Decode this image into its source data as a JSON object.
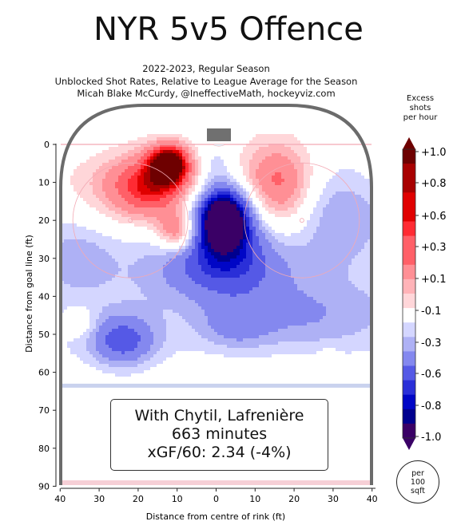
{
  "header": {
    "title": "NYR 5v5 Offence",
    "season": "2022-2023, Regular Season",
    "description": "Unblocked Shot Rates, Relative to League Average for the Season",
    "credit": "Micah Blake McCurdy, @IneffectiveMath, hockeyviz.com"
  },
  "info": {
    "line1": "With Chytil, Lafrenière",
    "line2": "663 minutes",
    "line3": "xGF/60: 2.34 (-4%)"
  },
  "legend": {
    "title_line1": "Excess",
    "title_line2": "shots",
    "title_line3": "per hour",
    "per_line1": "per",
    "per_line2": "100",
    "per_line3": "sqft"
  },
  "chart_data": {
    "type": "heatmap",
    "xlabel": "Distance from centre of rink (ft)",
    "ylabel": "Distance from goal line (ft)",
    "xlim": [
      -42,
      42
    ],
    "ylim": [
      90,
      0
    ],
    "x_ticks": [
      40,
      30,
      20,
      10,
      0,
      10,
      20,
      30,
      40
    ],
    "x_tick_values": [
      -40,
      -30,
      -20,
      -10,
      0,
      10,
      20,
      30,
      40
    ],
    "y_ticks": [
      0,
      10,
      20,
      30,
      40,
      50,
      60,
      70,
      80,
      90
    ],
    "colorbar_labels": [
      "+1.0",
      "+0.8",
      "+0.6",
      "+0.3",
      "+0.1",
      "-0.1",
      "-0.3",
      "-0.6",
      "-0.8",
      "-1.0"
    ],
    "colorbar_values": [
      1.0,
      0.8,
      0.6,
      0.3,
      0.1,
      -0.1,
      -0.3,
      -0.6,
      -0.8,
      -1.0
    ],
    "colors": {
      "pos_levels": [
        "#ffd6d9",
        "#ffb3b8",
        "#ff8f95",
        "#ff6068",
        "#ff2b33",
        "#e00000",
        "#a80000",
        "#6e0000"
      ],
      "neg_levels": [
        "#d4d6ff",
        "#aeb1f5",
        "#8488ef",
        "#5559e6",
        "#2a2fd8",
        "#0006c6",
        "#00008e",
        "#3a0066"
      ]
    },
    "blobs": [
      {
        "x": -12,
        "y": 5,
        "amp": 0.95,
        "sx": 3.5,
        "sy": 3.5
      },
      {
        "x": -16,
        "y": 11,
        "amp": 0.55,
        "sx": 7,
        "sy": 6
      },
      {
        "x": -10,
        "y": 23,
        "amp": 0.55,
        "sx": 3.5,
        "sy": 3.5
      },
      {
        "x": -22,
        "y": 13,
        "amp": 0.3,
        "sx": 12,
        "sy": 7
      },
      {
        "x": 16,
        "y": 10,
        "amp": 0.5,
        "sx": 7,
        "sy": 8
      },
      {
        "x": 17,
        "y": 18,
        "amp": 0.25,
        "sx": 7,
        "sy": 8
      },
      {
        "x": 2,
        "y": 19,
        "amp": -1.0,
        "sx": 4.5,
        "sy": 5.5
      },
      {
        "x": 3,
        "y": 26,
        "amp": -0.45,
        "sx": 9,
        "sy": 9
      },
      {
        "x": 0,
        "y": 33,
        "amp": -0.2,
        "sx": 14,
        "sy": 6
      },
      {
        "x": 26,
        "y": 16,
        "amp": -0.25,
        "sx": 10,
        "sy": 10
      },
      {
        "x": -24,
        "y": 52,
        "amp": -0.45,
        "sx": 6,
        "sy": 5
      },
      {
        "x": 5,
        "y": 48,
        "amp": -0.2,
        "sx": 6,
        "sy": 4
      },
      {
        "x": 22,
        "y": 45,
        "amp": -0.18,
        "sx": 14,
        "sy": 6
      },
      {
        "x": -35,
        "y": 30,
        "amp": -0.15,
        "sx": 6,
        "sy": 6
      },
      {
        "x": -35,
        "y": 47,
        "amp": 0.2,
        "sx": 3,
        "sy": 3
      },
      {
        "x": 29,
        "y": 56,
        "amp": 0.15,
        "sx": 1.5,
        "sy": 1.5
      },
      {
        "x": 0,
        "y": 5,
        "amp": -0.15,
        "sx": 3,
        "sy": 4
      }
    ]
  }
}
